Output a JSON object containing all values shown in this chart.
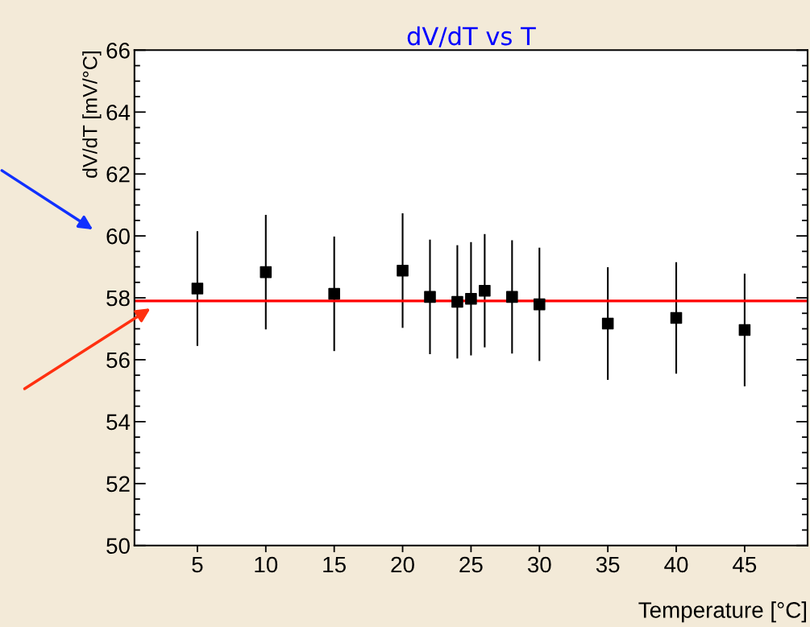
{
  "chart_data": {
    "type": "scatter",
    "title": "dV/dT vs T",
    "xlabel": "Temperature [°C]",
    "ylabel": "dV/dT [mV/°C]",
    "x": [
      5,
      10,
      15,
      20,
      22,
      24,
      25,
      26,
      28,
      30,
      35,
      40,
      45
    ],
    "series": [
      {
        "color": "#000000",
        "values": [
          58.3,
          58.83,
          58.13,
          58.88,
          58.03,
          57.87,
          57.97,
          58.23,
          58.03,
          57.79,
          57.17,
          57.35,
          56.96
        ],
        "errors": [
          1.85,
          1.85,
          1.85,
          1.85,
          1.85,
          1.83,
          1.83,
          1.83,
          1.83,
          1.83,
          1.82,
          1.8,
          1.82
        ]
      }
    ],
    "marker": "square",
    "xlim": [
      0.4,
      49.6
    ],
    "xticks": [
      5,
      10,
      15,
      20,
      25,
      30,
      35,
      40,
      45
    ],
    "ylim": [
      50,
      66
    ],
    "yticks": [
      50,
      52,
      54,
      56,
      58,
      60,
      62,
      64,
      66
    ],
    "ref_lines": [
      {
        "axis": "y",
        "value": 57.9,
        "color": "#ff0000"
      }
    ],
    "grid": false,
    "legend": false
  }
}
